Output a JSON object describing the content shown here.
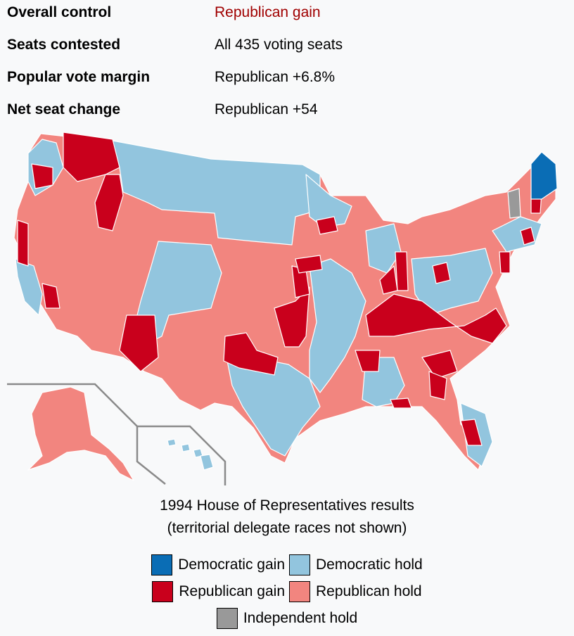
{
  "stats": [
    {
      "label": "Overall control",
      "value": "Republican gain",
      "highlight": true
    },
    {
      "label": "Seats contested",
      "value": "All 435 voting seats",
      "highlight": false
    },
    {
      "label": "Popular vote margin",
      "value": "Republican +6.8%",
      "highlight": false
    },
    {
      "label": "Net seat change",
      "value": "Republican +54",
      "highlight": false
    }
  ],
  "caption": {
    "line1": "1994 House of Representatives results",
    "line2": "(territorial delegate races not shown)"
  },
  "legend": [
    {
      "label": "Democratic gain",
      "color": "#0a6db5"
    },
    {
      "label": "Democratic hold",
      "color": "#92c5de"
    },
    {
      "label": "Republican gain",
      "color": "#c9001c"
    },
    {
      "label": "Republican hold",
      "color": "#f2857f"
    },
    {
      "label": "Independent hold",
      "color": "#999999"
    }
  ],
  "colors": {
    "dem_gain": "#0a6db5",
    "dem_hold": "#92c5de",
    "rep_gain": "#c9001c",
    "rep_hold": "#f2857f",
    "ind_hold": "#999999",
    "border": "#ffffff",
    "inset_line": "#8a8a8a"
  }
}
